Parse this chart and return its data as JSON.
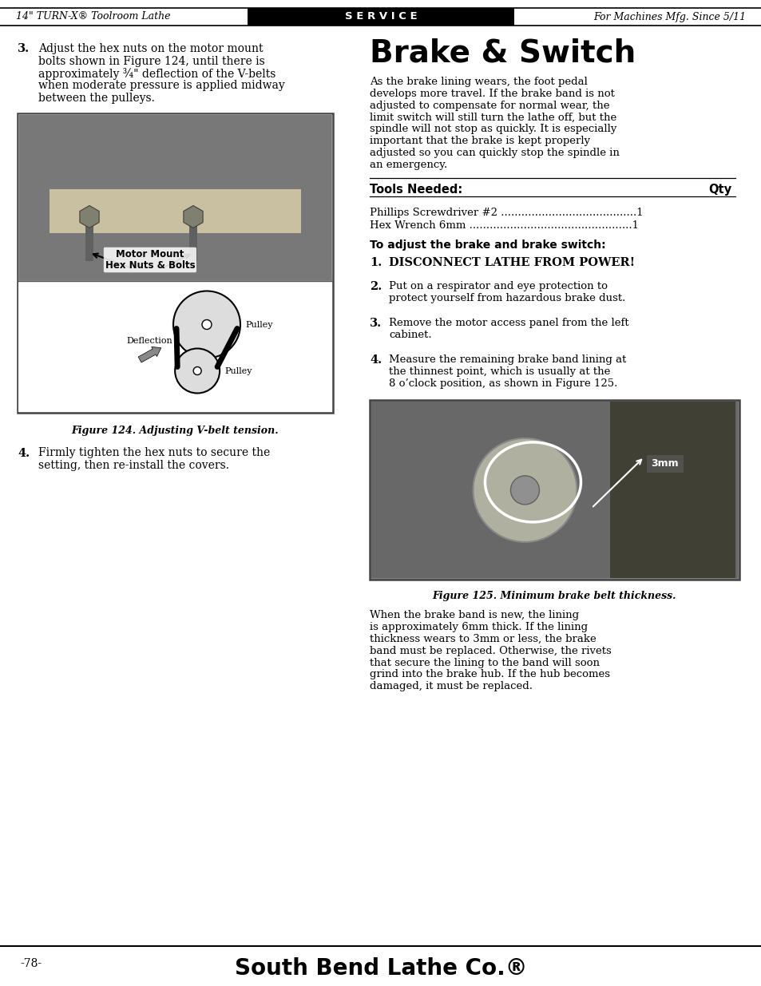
{
  "page_bg": "#ffffff",
  "header_bg": "#1a1a1a",
  "header_left": "14\" TURN-X® Toolroom Lathe",
  "header_center": "S E R V I C E",
  "header_right": "For Machines Mfg. Since 5/11",
  "footer_page": "-78-",
  "footer_company": "South Bend Lathe Co.®",
  "title": "Brake & Switch",
  "step3_text": "Adjust the hex nuts on the motor mount\nbolts shown in Figure 124, until there is\napproximately ¾\" deflection of the V-belts\nwhen moderate pressure is applied midway\nbetween the pulleys.",
  "step4_text": "Firmly tighten the hex nuts to secure the\nsetting, then re-install the covers.",
  "fig124_caption": "Figure 124. Adjusting V-belt tension.",
  "intro_text": "As the brake lining wears, the foot pedal\ndevelops more travel. If the brake band is not\nadjusted to compensate for normal wear, the\nlimit switch will still turn the lathe off, but the\nspindle will not stop as quickly. It is especially\nimportant that the brake is kept properly\nadjusted so you can quickly stop the spindle in\nan emergency.",
  "tools_label": "Tools Needed:",
  "tools_qty": "Qty",
  "tool1": "Phillips Screwdriver #2 ........................................1",
  "tool2": "Hex Wrench 6mm ................................................1",
  "adjust_header": "To adjust the brake and brake switch:",
  "r_step1": "DISCONNECT LATHE FROM POWER!",
  "r_step2": "Put on a respirator and eye protection to\nprotect yourself from hazardous brake dust.",
  "r_step3": "Remove the motor access panel from the left\ncabinet.",
  "r_step4": "Measure the remaining brake band lining at\nthe thinnest point, which is usually at the\n8 o’clock position, as shown in Figure 125.",
  "fig125_caption": "Figure 125. Minimum brake belt thickness.",
  "closing_text": "When the brake band is new, the lining\nis approximately 6mm thick. If the lining\nthickness wears to 3mm or less, the brake\nband must be replaced. Otherwise, the rivets\nthat secure the lining to the band will soon\ngrind into the brake hub. If the hub becomes\ndamaged, it must be replaced."
}
